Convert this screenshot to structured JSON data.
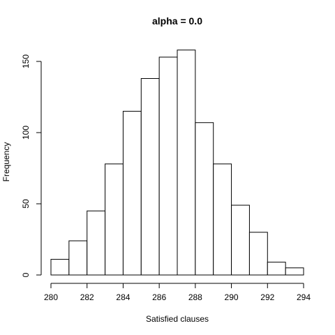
{
  "chart_data": {
    "type": "bar",
    "title": "alpha = 0.0",
    "xlabel": "Satisfied clauses",
    "ylabel": "Frequency",
    "bins": [
      {
        "start": 280,
        "end": 281,
        "value": 11
      },
      {
        "start": 281,
        "end": 282,
        "value": 24
      },
      {
        "start": 282,
        "end": 283,
        "value": 45
      },
      {
        "start": 283,
        "end": 284,
        "value": 78
      },
      {
        "start": 284,
        "end": 285,
        "value": 115
      },
      {
        "start": 285,
        "end": 286,
        "value": 138
      },
      {
        "start": 286,
        "end": 287,
        "value": 153
      },
      {
        "start": 287,
        "end": 288,
        "value": 158
      },
      {
        "start": 288,
        "end": 289,
        "value": 107
      },
      {
        "start": 289,
        "end": 290,
        "value": 78
      },
      {
        "start": 290,
        "end": 291,
        "value": 49
      },
      {
        "start": 291,
        "end": 292,
        "value": 30
      },
      {
        "start": 292,
        "end": 293,
        "value": 9
      },
      {
        "start": 293,
        "end": 294,
        "value": 5
      }
    ],
    "xlim": [
      280,
      294
    ],
    "ylim": [
      0,
      160
    ],
    "xticks": [
      "280",
      "282",
      "284",
      "286",
      "288",
      "290",
      "292",
      "294"
    ],
    "yticks": [
      "0",
      "50",
      "100",
      "150"
    ],
    "grid": false,
    "colors": {
      "bar_fill": "#ffffff",
      "bar_stroke": "#000000"
    }
  }
}
